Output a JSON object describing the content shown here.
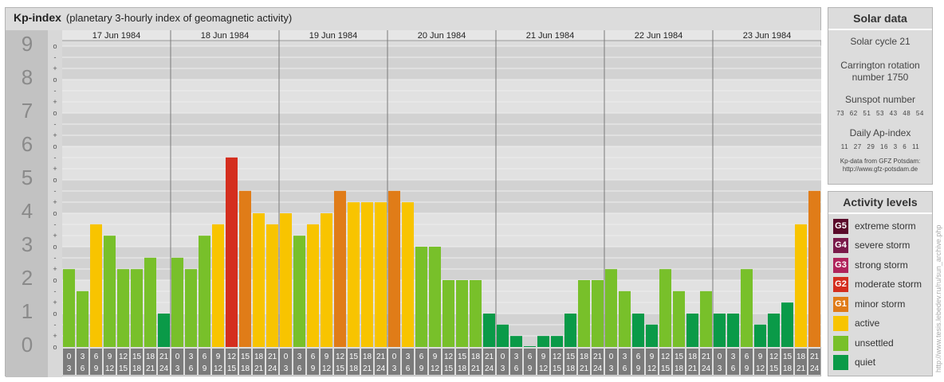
{
  "header": {
    "title": "Kp-index",
    "subtitle": "(planetary 3-hourly index of geomagnetic activity)"
  },
  "solar": {
    "heading": "Solar data",
    "cycle": "Solar cycle 21",
    "carrington_line1": "Carrington rotation",
    "carrington_line2": "number 1750",
    "sunspot_label": "Sunspot number",
    "sunspot_values": "73 62 51 53 43 48 54",
    "ap_label": "Daily Ap-index",
    "ap_values": "11 27 29 16 3 6 11",
    "source_line1": "Kp-data from GFZ Potsdam:",
    "source_line2": "http://www.gfz-potsdam.de"
  },
  "legend": {
    "heading": "Activity levels",
    "items": [
      {
        "badge": "G5",
        "label": "extreme storm",
        "color": "#5a0a2a"
      },
      {
        "badge": "G4",
        "label": "severe storm",
        "color": "#7a1a4a"
      },
      {
        "badge": "G3",
        "label": "strong storm",
        "color": "#b0245c"
      },
      {
        "badge": "G2",
        "label": "moderate storm",
        "color": "#d42e1e"
      },
      {
        "badge": "G1",
        "label": "minor storm",
        "color": "#e07c18"
      },
      {
        "badge": "",
        "label": "active",
        "color": "#f8c400"
      },
      {
        "badge": "",
        "label": "unsettled",
        "color": "#78c02a"
      },
      {
        "badge": "",
        "label": "quiet",
        "color": "#0a9a48"
      }
    ]
  },
  "watermark": "http://www.tesis.lebedev.ru/ru/sun_archive.php",
  "chart_data": {
    "type": "bar",
    "title": "Kp-index",
    "ylim": [
      0,
      9
    ],
    "y_ticks": [
      "0",
      "1",
      "2",
      "3",
      "4",
      "5",
      "6",
      "7",
      "8",
      "9"
    ],
    "minor_tick_marks": [
      "o",
      "+",
      "-"
    ],
    "days": [
      "17 Jun 1984",
      "18 Jun 1984",
      "19 Jun 1984",
      "20 Jun 1984",
      "21 Jun 1984",
      "22 Jun 1984",
      "23 Jun 1984"
    ],
    "hour_labels": [
      [
        "0",
        "3"
      ],
      [
        "3",
        "6"
      ],
      [
        "6",
        "9"
      ],
      [
        "9",
        "12"
      ],
      [
        "12",
        "15"
      ],
      [
        "15",
        "18"
      ],
      [
        "18",
        "21"
      ],
      [
        "21",
        "24"
      ]
    ],
    "values": [
      2.33,
      1.67,
      3.67,
      3.33,
      2.33,
      2.33,
      2.67,
      1.0,
      2.67,
      2.33,
      3.33,
      3.67,
      5.67,
      4.67,
      4.0,
      3.67,
      4.0,
      3.33,
      3.67,
      4.0,
      4.67,
      4.33,
      4.33,
      4.33,
      4.67,
      4.33,
      3.0,
      3.0,
      2.0,
      2.0,
      2.0,
      1.0,
      0.67,
      0.33,
      0.0,
      0.33,
      0.33,
      1.0,
      2.0,
      2.0,
      2.33,
      1.67,
      1.0,
      0.67,
      2.33,
      1.67,
      1.0,
      1.67,
      1.0,
      1.0,
      2.33,
      0.67,
      1.0,
      1.33,
      3.67,
      4.67
    ],
    "colors": {
      "quiet": "#0a9a48",
      "unsettled": "#78c02a",
      "active": "#f8c400",
      "g1": "#e07c18",
      "g2": "#d42e1e"
    }
  }
}
